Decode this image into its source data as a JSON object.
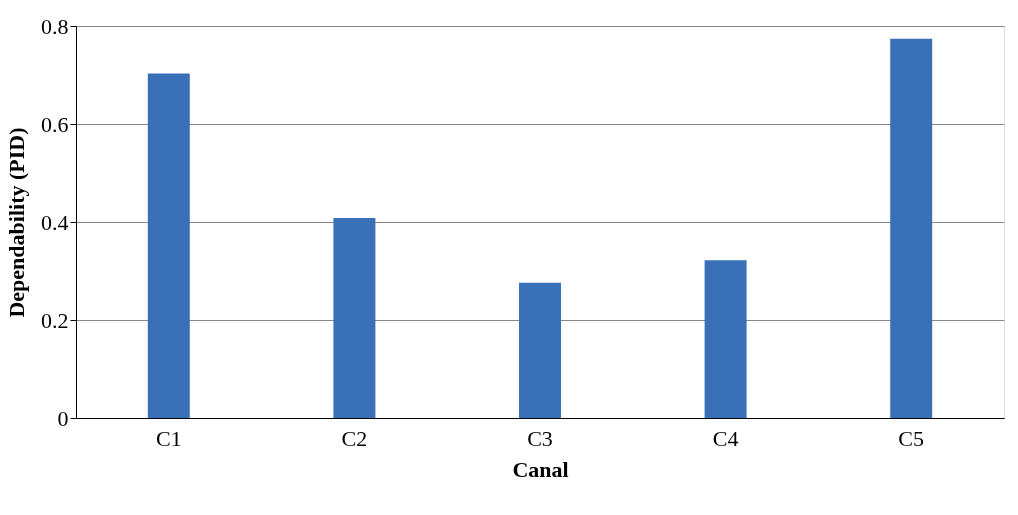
{
  "chart_data": {
    "type": "bar",
    "xlabel": "Canal",
    "ylabel": "Dependability (PID)",
    "categories": [
      "C1",
      "C2",
      "C3",
      "C4",
      "C5"
    ],
    "values": [
      0.703,
      0.408,
      0.276,
      0.322,
      0.774
    ],
    "color": "#3a70b8",
    "ylim": [
      0,
      0.8
    ],
    "yticks": [
      0,
      0.2,
      0.4,
      0.6,
      0.8
    ],
    "grid": "y"
  }
}
